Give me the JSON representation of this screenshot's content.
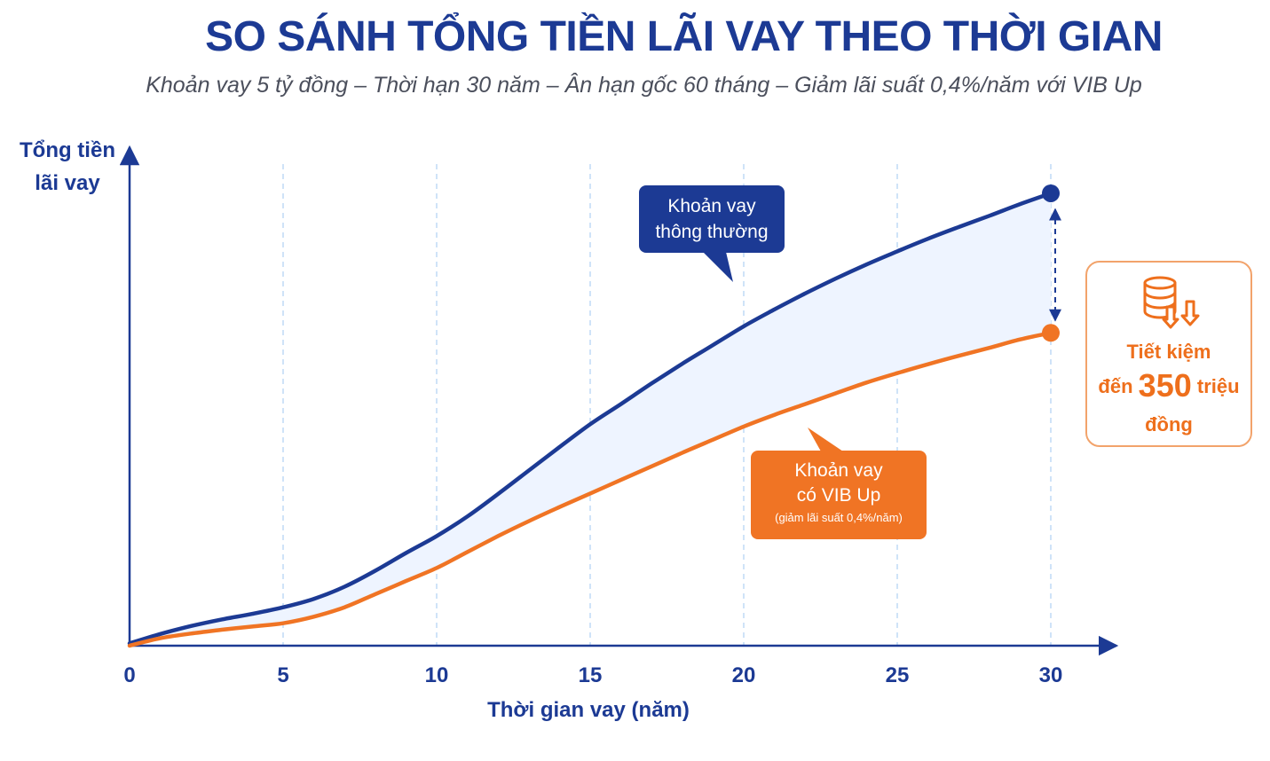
{
  "title": "SO SÁNH TỔNG TIỀN LÃI VAY THEO THỜI GIAN",
  "subtitle": "Khoản vay 5 tỷ đồng – Thời hạn 30 năm – Ân hạn gốc 60 tháng – Giảm lãi suất 0,4%/năm với VIB Up",
  "callouts": {
    "normal": {
      "line1": "Khoản vay",
      "line2": "thông thường"
    },
    "vib": {
      "line1": "Khoản vay",
      "line2": "có VIB Up",
      "note": "(giảm lãi suất 0,4%/năm)"
    }
  },
  "savings": {
    "line1": "Tiết kiệm",
    "prefix": "đến",
    "amount": "350",
    "suffix": "triệu",
    "line3": "đồng",
    "icon": "coin-stack-down-arrows-icon"
  },
  "colors": {
    "normal": "#1c3a94",
    "vib": "#f07424",
    "band": "#eef4ff",
    "grid": "#bfdaf5"
  },
  "chart_data": {
    "type": "line",
    "xlabel": "Thời gian vay (năm)",
    "ylabel_line1": "Tổng tiền",
    "ylabel_line2": "lãi vay",
    "x_ticks": [
      0,
      5,
      10,
      15,
      20,
      25,
      30
    ],
    "xlim": [
      0,
      30
    ],
    "ylim": [
      0,
      100
    ],
    "grid": "vertical-dashed",
    "series": [
      {
        "name": "Khoản vay thông thường",
        "x": [
          0,
          1,
          2,
          3,
          4,
          5,
          6,
          7,
          8,
          9,
          10,
          11,
          12,
          13,
          14,
          15,
          16,
          17,
          18,
          19,
          20,
          21,
          22,
          23,
          24,
          25,
          26,
          27,
          28,
          29,
          30
        ],
        "y": [
          0.5,
          2.5,
          4.2,
          5.6,
          6.8,
          8.2,
          10,
          12.6,
          16,
          19.8,
          23.4,
          27.6,
          32.4,
          37.4,
          42.4,
          47.3,
          51.6,
          56,
          60.2,
          64.2,
          68.2,
          71.8,
          75.2,
          78.4,
          81.4,
          84.2,
          86.9,
          89.4,
          91.8,
          94.3,
          96.6
        ]
      },
      {
        "name": "Khoản vay có VIB Up",
        "x": [
          0,
          1,
          2,
          3,
          4,
          5,
          6,
          7,
          8,
          9,
          10,
          11,
          12,
          13,
          14,
          15,
          16,
          17,
          18,
          19,
          20,
          21,
          22,
          23,
          24,
          25,
          26,
          27,
          28,
          29,
          30
        ],
        "y": [
          0,
          1.6,
          2.6,
          3.4,
          4.1,
          4.8,
          6.2,
          8.2,
          11,
          13.8,
          16.6,
          20,
          23.4,
          26.6,
          29.6,
          32.5,
          35.4,
          38.3,
          41.2,
          44,
          46.8,
          49.3,
          51.6,
          53.9,
          56.2,
          58.2,
          60.1,
          61.9,
          63.6,
          65.4,
          66.8
        ]
      }
    ]
  }
}
